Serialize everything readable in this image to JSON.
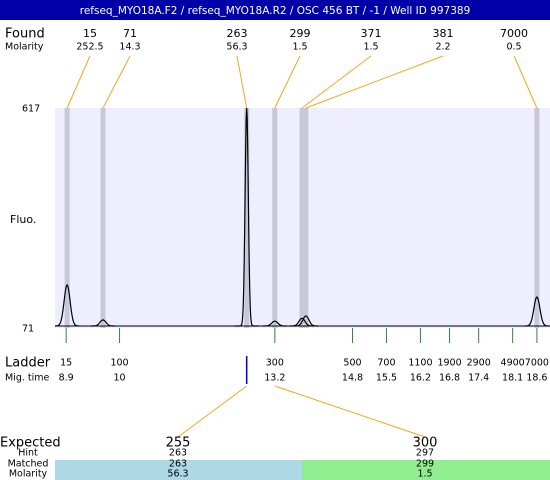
{
  "header": {
    "title": "refseq_MYO18A.F2 / refseq_MYO18A.R2 / OSC 456 BT / -1 / Well ID 997389"
  },
  "found": {
    "label": "Found",
    "molarity_label": "Molarity",
    "peaks": [
      {
        "size": "15",
        "molarity": "252.5",
        "time": 8.92,
        "fluo": 178
      },
      {
        "size": "71",
        "molarity": "14.3",
        "time": 9.66,
        "fluo": 91
      },
      {
        "size": "263",
        "molarity": "56.3",
        "time": 12.62,
        "fluo": 617
      },
      {
        "size": "299",
        "molarity": "1.5",
        "time": 13.2,
        "fluo": 88
      },
      {
        "size": "371",
        "molarity": "1.5",
        "time": 13.76,
        "fluo": 95
      },
      {
        "size": "381",
        "molarity": "2.2",
        "time": 13.84,
        "fluo": 101
      },
      {
        "size": "7000",
        "molarity": "0.5",
        "time": 18.6,
        "fluo": 148
      }
    ]
  },
  "plot": {
    "ylabel": "Fluo.",
    "ylim": [
      71,
      617
    ],
    "yticks": [
      617,
      71
    ],
    "xlim": [
      8.67,
      18.87
    ],
    "baseline_fluo": 76
  },
  "ladder": {
    "label": "Ladder",
    "time_label": "Mig. time",
    "sizes": [
      15,
      100,
      300,
      500,
      700,
      1100,
      1900,
      2900,
      4900,
      7000
    ],
    "times": [
      8.9,
      10,
      13.2,
      14.8,
      15.5,
      16.2,
      16.8,
      17.4,
      18.1,
      18.6
    ]
  },
  "expected": {
    "label": "Expected",
    "hint_label": "Hint",
    "matched_label": "Matched",
    "molarity_label": "Molarity",
    "columns": [
      {
        "expected": "255",
        "hint": "263",
        "matched": "263",
        "molarity": "56.3"
      },
      {
        "expected": "300",
        "hint": "297",
        "matched": "299",
        "molarity": "1.5"
      }
    ]
  }
}
